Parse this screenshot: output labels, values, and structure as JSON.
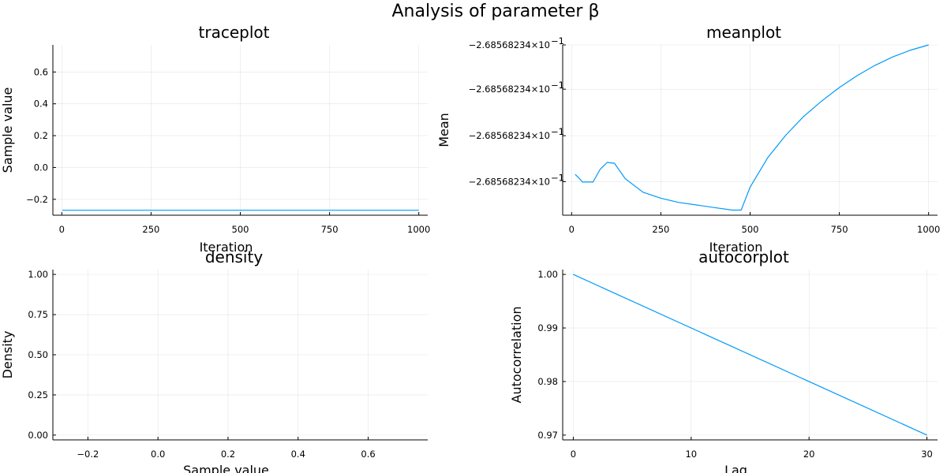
{
  "title": "Analysis of parameter β",
  "series_color": "#009AFA",
  "chart_data": [
    {
      "type": "line",
      "title": "traceplot",
      "xlabel": "Iteration",
      "ylabel": "Sample value",
      "xlim": [
        -25,
        1025
      ],
      "ylim": [
        -0.3,
        0.77
      ],
      "xticks": [
        0,
        250,
        500,
        750,
        1000
      ],
      "xticklabels": [
        "0",
        "250",
        "500",
        "750",
        "1000"
      ],
      "yticks": [
        -0.2,
        0.0,
        0.2,
        0.4,
        0.6
      ],
      "yticklabels": [
        "−0.2",
        "0.0",
        "0.2",
        "0.4",
        "0.6"
      ],
      "x": [
        1,
        1000
      ],
      "y": [
        -0.2686,
        -0.2686
      ],
      "grid": true,
      "legend": "none"
    },
    {
      "type": "line",
      "title": "meanplot",
      "xlabel": "Iteration",
      "ylabel": "Mean",
      "xlim": [
        -25,
        1025
      ],
      "ylim": [
        0,
        1
      ],
      "xticks": [
        0,
        250,
        500,
        750,
        1000
      ],
      "xticklabels": [
        "0",
        "250",
        "500",
        "750",
        "1000"
      ],
      "yticks": [
        0.197,
        0.467,
        0.74,
        1.0
      ],
      "yticklabels": [
        "−2.68568234×10",
        "−2.68568234×10",
        "−2.68568234×10",
        "−2.68568234×10"
      ],
      "ytick_exponent": "−1",
      "x": [
        10,
        20,
        30,
        60,
        80,
        100,
        120,
        150,
        200,
        250,
        300,
        350,
        400,
        450,
        475,
        500,
        550,
        600,
        650,
        700,
        750,
        800,
        850,
        900,
        950,
        1000
      ],
      "y": [
        0.24,
        0.22,
        0.195,
        0.195,
        0.27,
        0.31,
        0.305,
        0.215,
        0.135,
        0.1,
        0.075,
        0.06,
        0.045,
        0.03,
        0.03,
        0.165,
        0.34,
        0.47,
        0.58,
        0.67,
        0.75,
        0.82,
        0.88,
        0.93,
        0.97,
        1.0
      ],
      "grid": true,
      "legend": "none"
    },
    {
      "type": "line",
      "title": "density",
      "xlabel": "Sample value",
      "ylabel": "Density",
      "xlim": [
        -0.3,
        0.77
      ],
      "ylim": [
        -0.03,
        1.03
      ],
      "xticks": [
        -0.2,
        0.0,
        0.2,
        0.4,
        0.6
      ],
      "xticklabels": [
        "−0.2",
        "0.0",
        "0.2",
        "0.4",
        "0.6"
      ],
      "yticks": [
        0.0,
        0.25,
        0.5,
        0.75,
        1.0
      ],
      "yticklabels": [
        "0.00",
        "0.25",
        "0.50",
        "0.75",
        "1.00"
      ],
      "x": [],
      "y": [],
      "grid": true,
      "legend": "none"
    },
    {
      "type": "line",
      "title": "autocorplot",
      "xlabel": "Lag",
      "ylabel": "Autocorrelation",
      "xlim": [
        -0.9,
        30.9
      ],
      "ylim": [
        0.9691,
        1.0009
      ],
      "xticks": [
        0,
        10,
        20,
        30
      ],
      "xticklabels": [
        "0",
        "10",
        "20",
        "30"
      ],
      "yticks": [
        0.97,
        0.98,
        0.99,
        1.0
      ],
      "yticklabels": [
        "0.97",
        "0.98",
        "0.99",
        "1.00"
      ],
      "x": [
        0,
        30
      ],
      "y": [
        1.0,
        0.97
      ],
      "grid": true,
      "legend": "none"
    }
  ]
}
